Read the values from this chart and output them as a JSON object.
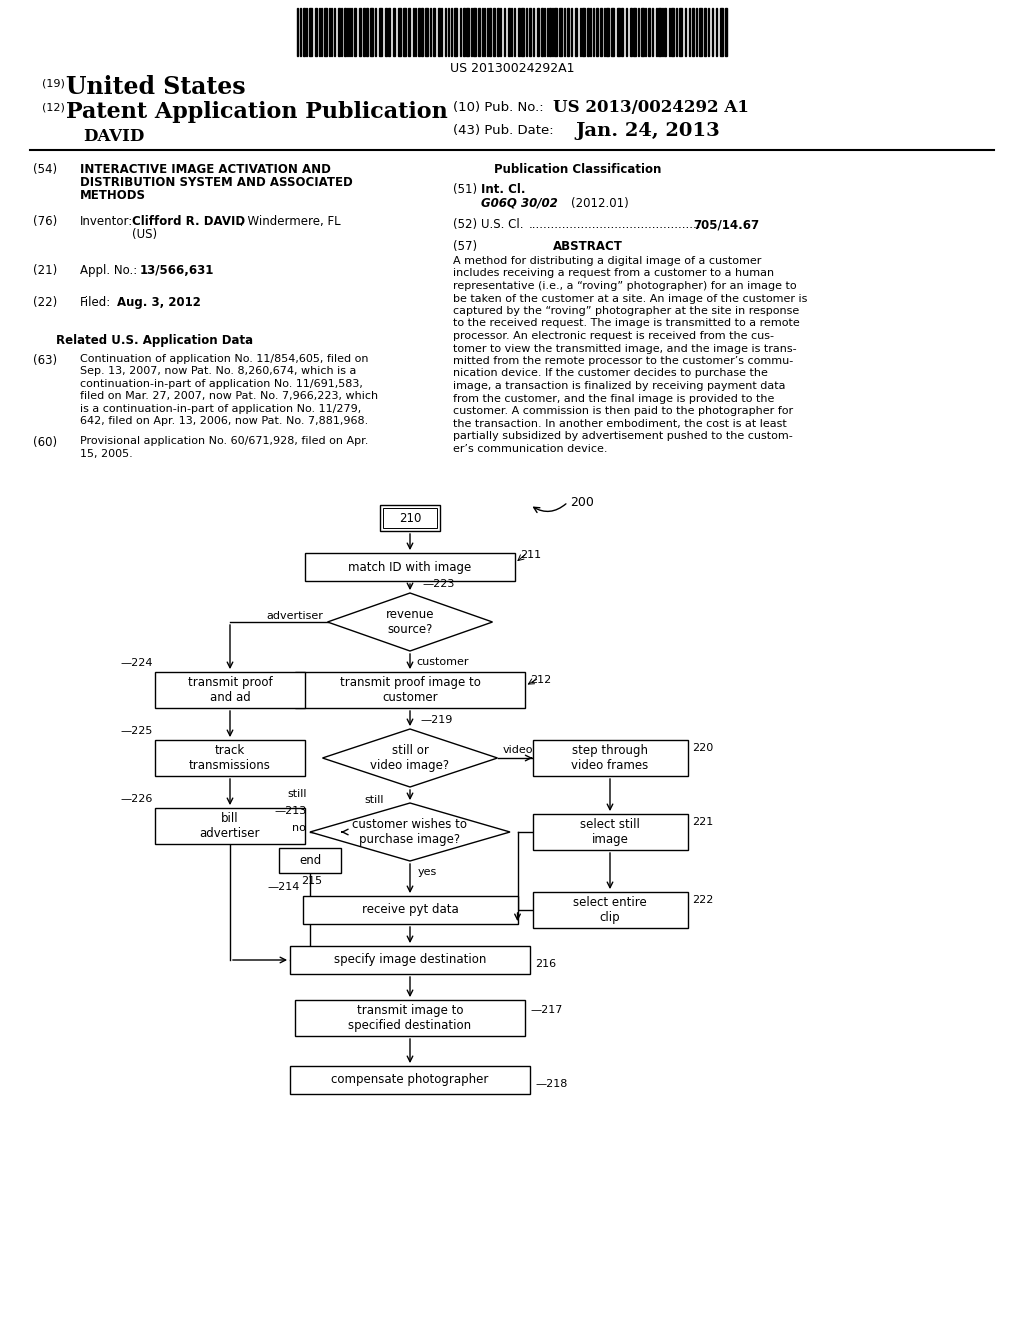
{
  "bg_color": "#ffffff",
  "barcode_text": "US 20130024292A1",
  "abstract_lines": [
    "A method for distributing a digital image of a customer",
    "includes receiving a request from a customer to a human",
    "representative (i.e., a “roving” photographer) for an image to",
    "be taken of the customer at a site. An image of the customer is",
    "captured by the “roving” photographer at the site in response",
    "to the received request. The image is transmitted to a remote",
    "processor. An electronic request is received from the cus-",
    "tomer to view the transmitted image, and the image is trans-",
    "mitted from the remote processor to the customer’s commu-",
    "nication device. If the customer decides to purchase the",
    "image, a transaction is finalized by receiving payment data",
    "from the customer, and the final image is provided to the",
    "customer. A commission is then paid to the photographer for",
    "the transaction. In another embodiment, the cost is at least",
    "partially subsidized by advertisement pushed to the custom-",
    "er’s communication device."
  ]
}
